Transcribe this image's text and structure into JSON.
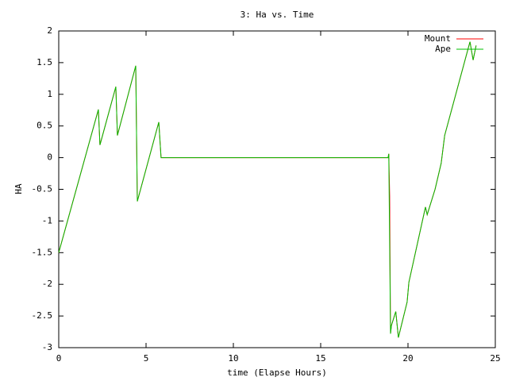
{
  "chart_data": {
    "type": "line",
    "title": "3: Ha vs. Time",
    "x_label": "time (Elapse Hours)",
    "y_label": "HA",
    "x": [
      0,
      2.27,
      2.36,
      3.27,
      3.36,
      4.41,
      4.5,
      5.73,
      5.86,
      18.86,
      18.9,
      18.95,
      18.98,
      19.0,
      19.05,
      19.3,
      19.45,
      19.95,
      20.05,
      21.0,
      21.1,
      21.55,
      21.9,
      22.1,
      23.55,
      23.73,
      23.9
    ],
    "series": [
      {
        "name": "Mount",
        "color": "#ff0000",
        "values": [
          -1.5,
          0.76,
          0.2,
          1.12,
          0.35,
          1.45,
          -0.69,
          0.56,
          0,
          0,
          0.06,
          -0.6,
          -2.0,
          -2.78,
          -2.65,
          -2.43,
          -2.84,
          -2.28,
          -1.97,
          -0.78,
          -0.9,
          -0.5,
          -0.09,
          0.35,
          1.83,
          1.54,
          1.77
        ]
      },
      {
        "name": "Ape",
        "color": "#00c000",
        "values": [
          -1.5,
          0.76,
          0.2,
          1.12,
          0.35,
          1.45,
          -0.69,
          0.56,
          0,
          0,
          0.06,
          -1.36,
          -2.2,
          -2.78,
          -2.65,
          -2.43,
          -2.84,
          -2.28,
          -1.97,
          -0.78,
          -0.9,
          -0.5,
          -0.09,
          0.35,
          1.83,
          1.54,
          1.77
        ]
      }
    ],
    "xlim": [
      0,
      25
    ],
    "xticks": [
      0,
      5,
      10,
      15,
      20,
      25
    ],
    "ylim": [
      -3,
      2
    ],
    "yticks": [
      -3,
      -2.5,
      -2,
      -1.5,
      -1,
      -0.5,
      0,
      0.5,
      1,
      1.5,
      2
    ],
    "legend": "top-right"
  }
}
